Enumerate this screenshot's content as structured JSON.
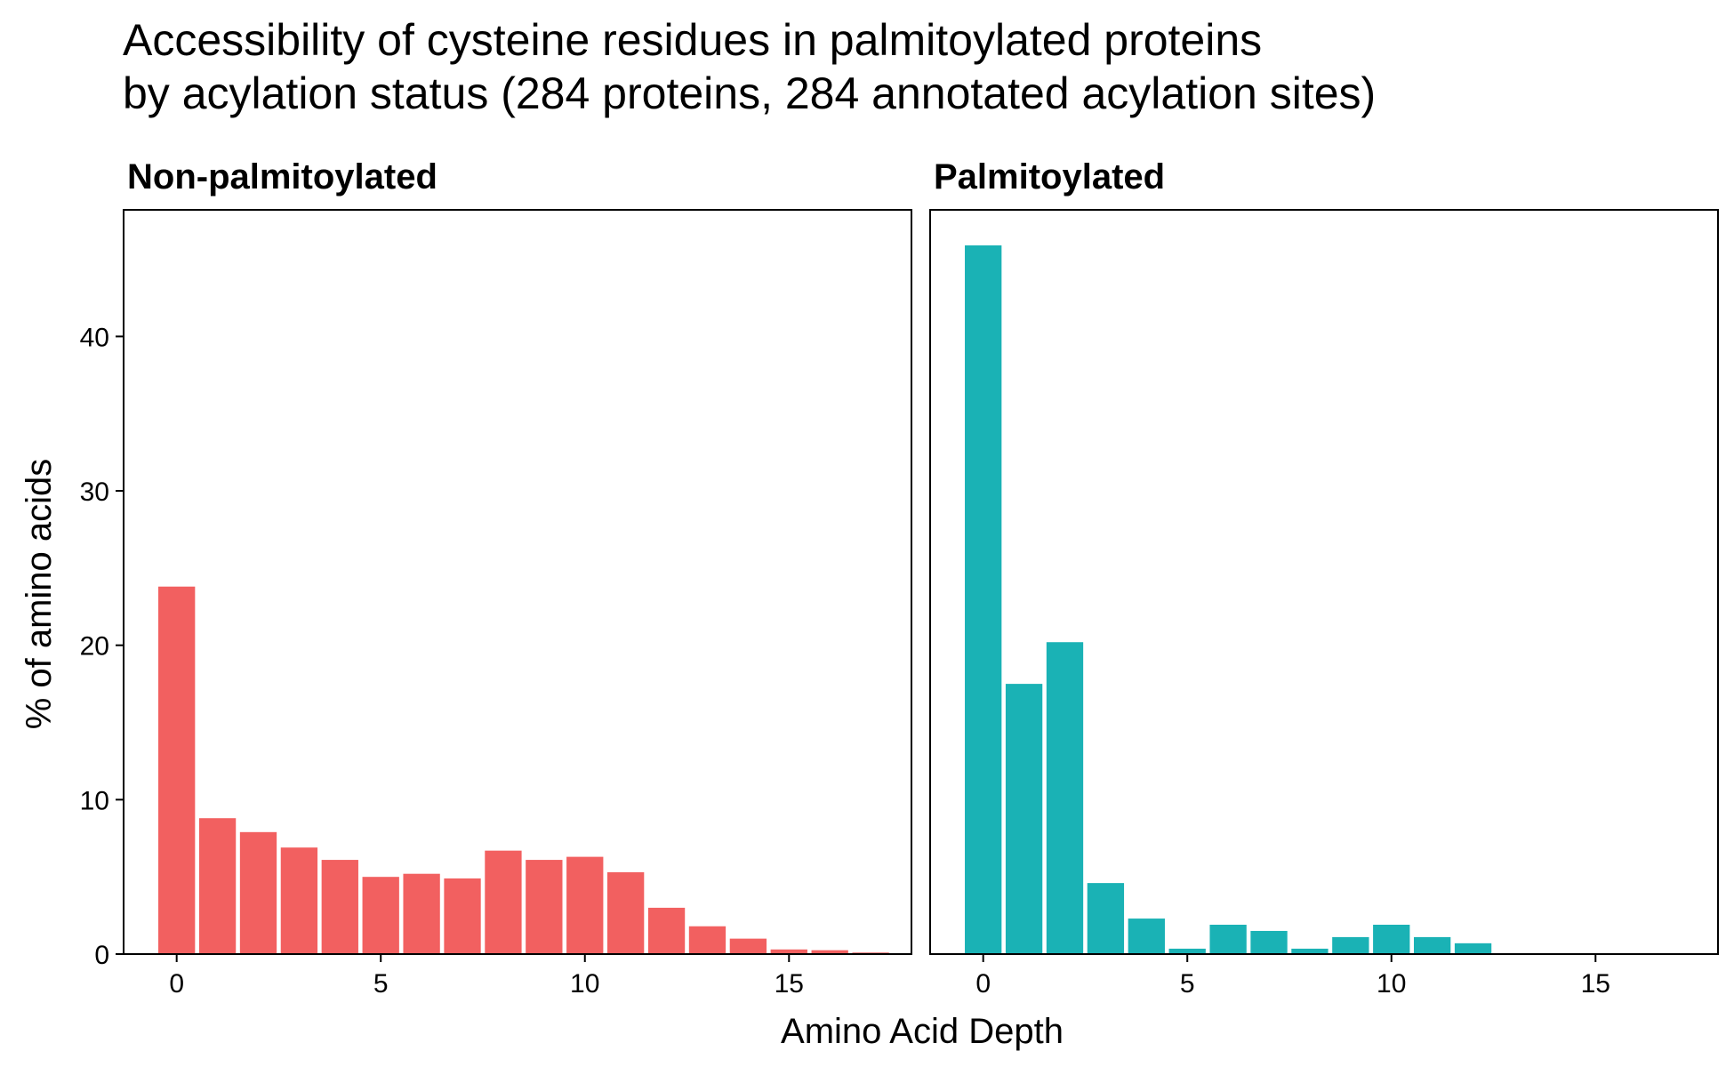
{
  "chart_data": {
    "type": "bar",
    "title_lines": [
      "Accessibility of cysteine residues in palmitoylated proteins",
      "by acylation status (284 proteins, 284 annotated acylation sites)"
    ],
    "xlabel": "Amino Acid Depth",
    "ylabel": "% of amino acids",
    "xlim": [
      -1.3,
      18
    ],
    "ylim": [
      0,
      48.2
    ],
    "x_ticks": [
      "0",
      "5",
      "10",
      "15"
    ],
    "y_ticks": [
      "0",
      "10",
      "20",
      "30",
      "40"
    ],
    "grid": false,
    "facets": [
      {
        "label": "Non-palmitoylated",
        "color": "#F26060",
        "x": [
          0,
          1,
          2,
          3,
          4,
          5,
          6,
          7,
          8,
          9,
          10,
          11,
          12,
          13,
          14,
          15,
          16,
          17
        ],
        "values": [
          23.8,
          8.8,
          7.9,
          6.9,
          6.1,
          5.0,
          5.2,
          4.9,
          6.7,
          6.1,
          6.3,
          5.3,
          3.0,
          1.8,
          1.0,
          0.3,
          0.25,
          0.1
        ]
      },
      {
        "label": "Palmitoylated",
        "color": "#1AB2B5",
        "x": [
          0,
          1,
          2,
          3,
          4,
          5,
          6,
          7,
          8,
          9,
          10,
          11,
          12
        ],
        "values": [
          45.9,
          17.5,
          20.2,
          4.6,
          2.3,
          0.35,
          1.9,
          1.5,
          0.35,
          1.1,
          1.9,
          1.1,
          0.7
        ]
      }
    ]
  }
}
